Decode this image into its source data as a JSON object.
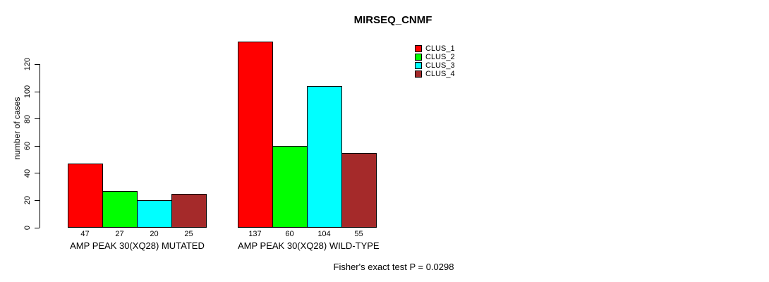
{
  "chart_data": {
    "type": "bar",
    "title": "MIRSEQ_CNMF",
    "ylabel": "number of cases",
    "xlabel": "",
    "yticks": [
      0,
      20,
      40,
      60,
      80,
      100,
      120
    ],
    "ylim": [
      0,
      140
    ],
    "grid": false,
    "legend_position": "top-right",
    "categories": [
      "AMP PEAK 30(XQ28) MUTATED",
      "AMP PEAK 30(XQ28) WILD-TYPE"
    ],
    "series": [
      {
        "name": "CLUS_1",
        "color": "#FF0000",
        "values": [
          47,
          137
        ]
      },
      {
        "name": "CLUS_2",
        "color": "#00FF00",
        "values": [
          27,
          60
        ]
      },
      {
        "name": "CLUS_3",
        "color": "#00FFFF",
        "values": [
          20,
          104
        ]
      },
      {
        "name": "CLUS_4",
        "color": "#A52A2A",
        "values": [
          25,
          55
        ]
      }
    ],
    "bar_value_labels": [
      [
        47,
        27,
        20,
        25
      ],
      [
        137,
        60,
        104,
        55
      ]
    ],
    "annotation": "Fisher's exact test P = 0.0298",
    "background_color": "#FFFFFF",
    "axis_color": "#000000"
  }
}
